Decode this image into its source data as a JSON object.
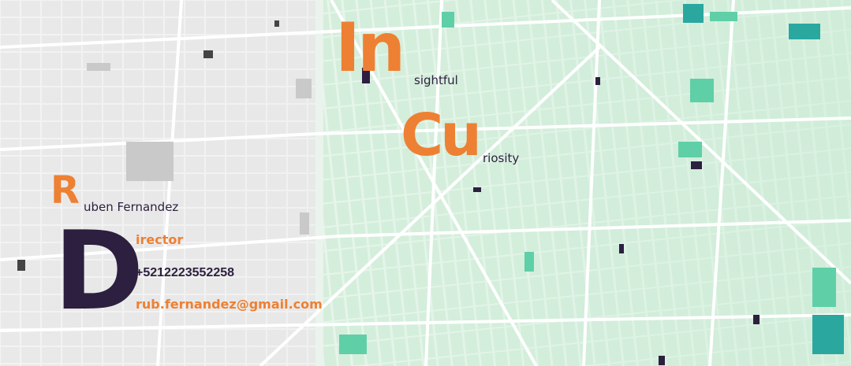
{
  "card": {
    "tagline_line1": {
      "initial": "In",
      "rest": "sightful"
    },
    "tagline_line2": {
      "initial": "Cu",
      "rest": "riosity"
    },
    "name": {
      "initial": "R",
      "rest": "uben Fernandez"
    },
    "role": {
      "initial": "D",
      "rest": "irector"
    },
    "phone": "+5212223552258",
    "email": "rub.fernandez@gmail.com"
  },
  "colors": {
    "accent": "#ee8033",
    "dark": "#2d1f3f",
    "map_gray": "#f2f2f2",
    "map_green": "#e3f4e6",
    "block_teal": "#2aa8a0",
    "block_mint": "#5fcfa8"
  }
}
